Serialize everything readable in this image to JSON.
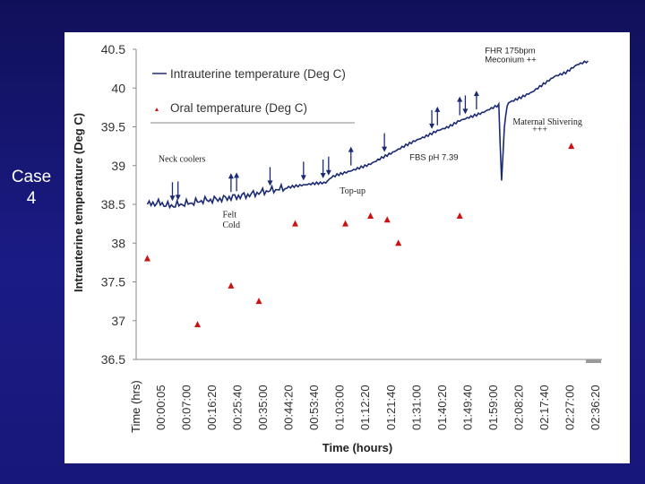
{
  "slide": {
    "case_label_line1": "Case",
    "case_label_line2": "4"
  },
  "chart_data": {
    "type": "line",
    "title": "",
    "ylabel": "Intrauterine temperature (Deg  C)",
    "xlabel": "Time (hours)",
    "x_axis_corner_label": "Time (hrs)",
    "ylim": [
      36.5,
      40.5
    ],
    "yticks": [
      "40.5",
      "40",
      "39.5",
      "39",
      "38.5",
      "38",
      "37.5",
      "37",
      "36.5"
    ],
    "x_ticks": [
      "00:00:05",
      "00:07:00",
      "00:16:20",
      "00:25:40",
      "00:35:00",
      "00:44:20",
      "00:53:40",
      "01:03:00",
      "01:12:20",
      "01:21:40",
      "01:31:00",
      "01:40:20",
      "01:49:40",
      "01:59:00",
      "02:08:20",
      "02:17:40",
      "02:27:00",
      "02:36:20"
    ],
    "legend": {
      "position": "top-left",
      "entries": [
        "Intrauterine temperature (Deg C)",
        "Oral temperature (Deg C)"
      ]
    },
    "series": [
      {
        "name": "Intrauterine temperature (Deg C)",
        "style": "line",
        "color": "#1a2a73",
        "x_minutes": [
          0,
          4,
          8,
          12,
          16,
          20,
          24,
          28,
          32,
          36,
          40,
          44,
          48,
          52,
          56,
          60,
          64,
          66,
          68,
          72,
          76,
          80,
          84,
          88,
          92,
          96,
          100,
          104,
          108,
          112,
          116,
          120,
          124,
          126,
          127,
          128,
          129,
          130,
          134,
          138,
          142,
          146,
          150,
          154,
          158
        ],
        "values": [
          38.5,
          38.52,
          38.48,
          38.5,
          38.52,
          38.55,
          38.56,
          38.58,
          38.6,
          38.62,
          38.65,
          38.68,
          38.7,
          38.73,
          38.75,
          38.77,
          38.78,
          38.85,
          38.88,
          38.92,
          38.97,
          39.02,
          39.1,
          39.17,
          39.25,
          39.32,
          39.38,
          39.45,
          39.5,
          39.58,
          39.63,
          39.68,
          39.75,
          39.78,
          38.8,
          39.5,
          39.78,
          39.82,
          39.88,
          39.95,
          40.05,
          40.15,
          40.2,
          40.3,
          40.35
        ]
      },
      {
        "name": "Oral temperature (Deg C)",
        "style": "markers",
        "marker": "triangle",
        "color": "#cc1111",
        "x_minutes": [
          0,
          18,
          30,
          40,
          53,
          71,
          80,
          86,
          90,
          112,
          152
        ],
        "values": [
          37.8,
          36.95,
          37.45,
          37.25,
          38.25,
          38.25,
          38.35,
          38.3,
          38.0,
          38.35,
          39.25
        ]
      }
    ],
    "annotations": [
      {
        "text": "FHR 175bpm",
        "x_minutes": 121,
        "y": 40.45
      },
      {
        "text": "Meconium ++",
        "x_minutes": 121,
        "y": 40.33
      },
      {
        "text": "Maternal Shivering",
        "x_minutes": 131,
        "y": 39.53
      },
      {
        "text": "+++",
        "x_minutes": 138,
        "y": 39.43
      },
      {
        "text": "Neck coolers",
        "x_minutes": 4,
        "y": 39.05
      },
      {
        "text": "FBS pH 7.39",
        "x_minutes": 94,
        "y": 39.07
      },
      {
        "text": "Top-up",
        "x_minutes": 69,
        "y": 38.64
      },
      {
        "text": "Felt",
        "x_minutes": 27,
        "y": 38.33
      },
      {
        "text": "Cold",
        "x_minutes": 27,
        "y": 38.2
      }
    ],
    "events": [
      {
        "x_minutes": 9,
        "direction": "down"
      },
      {
        "x_minutes": 11,
        "direction": "down"
      },
      {
        "x_minutes": 30,
        "direction": "up"
      },
      {
        "x_minutes": 32,
        "direction": "up"
      },
      {
        "x_minutes": 44,
        "direction": "down"
      },
      {
        "x_minutes": 56,
        "direction": "down"
      },
      {
        "x_minutes": 63,
        "direction": "down"
      },
      {
        "x_minutes": 65,
        "direction": "down"
      },
      {
        "x_minutes": 73,
        "direction": "up"
      },
      {
        "x_minutes": 85,
        "direction": "down"
      },
      {
        "x_minutes": 102,
        "direction": "down"
      },
      {
        "x_minutes": 104,
        "direction": "up"
      },
      {
        "x_minutes": 112,
        "direction": "up"
      },
      {
        "x_minutes": 114,
        "direction": "down"
      },
      {
        "x_minutes": 118,
        "direction": "up"
      }
    ],
    "x_range_minutes": [
      -4,
      163
    ]
  }
}
